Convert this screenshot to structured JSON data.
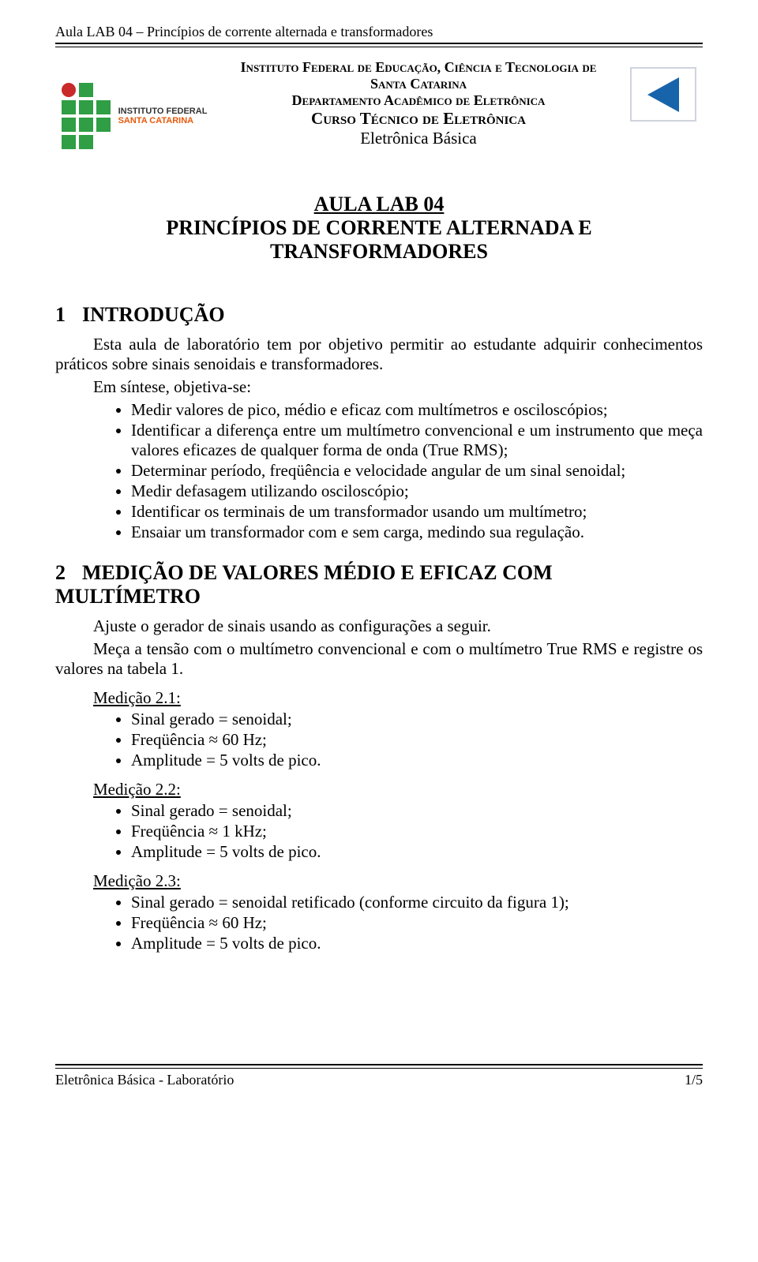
{
  "header": {
    "running": "Aula LAB 04 – Princípios de corrente alternada e transformadores",
    "line1": "Instituto Federal de Educação, Ciência e Tecnologia de Santa Catarina",
    "line2": "Departamento Acadêmico de Eletrônica",
    "line3": "Curso Técnico de Eletrônica",
    "line4": "Eletrônica Básica"
  },
  "title": {
    "main": "AULA LAB 04",
    "sub": "PRINCÍPIOS DE CORRENTE ALTERNADA E TRANSFORMADORES"
  },
  "section1": {
    "num": "1",
    "title": "INTRODUÇÃO",
    "para1": "Esta aula de laboratório tem por objetivo permitir ao estudante adquirir conhecimentos práticos sobre sinais senoidais e transformadores.",
    "para2": "Em síntese, objetiva-se:",
    "bullets": [
      "Medir valores de pico, médio e eficaz com multímetros e osciloscópios;",
      "Identificar a diferença entre um multímetro convencional e um instrumento que meça valores eficazes de qualquer forma de onda (True RMS);",
      "Determinar período, freqüência e velocidade angular de um sinal senoidal;",
      "Medir defasagem utilizando osciloscópio;",
      "Identificar os terminais de um transformador usando um multímetro;",
      "Ensaiar um transformador com e sem carga, medindo sua regulação."
    ]
  },
  "section2": {
    "num": "2",
    "title": "MEDIÇÃO DE VALORES MÉDIO E EFICAZ COM MULTÍMETRO",
    "para1": "Ajuste o gerador de sinais usando as configurações a seguir.",
    "para2": "Meça a tensão com o multímetro convencional e com o multímetro True RMS e registre os valores na tabela 1.",
    "m1_label": "Medição 2.1:",
    "m1_items": [
      "Sinal gerado = senoidal;",
      "Freqüência ≈ 60 Hz;",
      "Amplitude = 5 volts de pico."
    ],
    "m2_label": "Medição 2.2:",
    "m2_items": [
      "Sinal gerado = senoidal;",
      "Freqüência ≈ 1 kHz;",
      "Amplitude = 5 volts de pico."
    ],
    "m3_label": "Medição 2.3:",
    "m3_items": [
      "Sinal gerado = senoidal retificado (conforme circuito da figura 1);",
      "Freqüência ≈ 60 Hz;",
      "Amplitude = 5 volts de pico."
    ]
  },
  "footer": {
    "left": "Eletrônica Básica - Laboratório",
    "right": "1/5"
  },
  "logos": {
    "ifsc_text1": "INSTITUTO FEDERAL",
    "ifsc_text2": "SANTA CATARINA"
  }
}
